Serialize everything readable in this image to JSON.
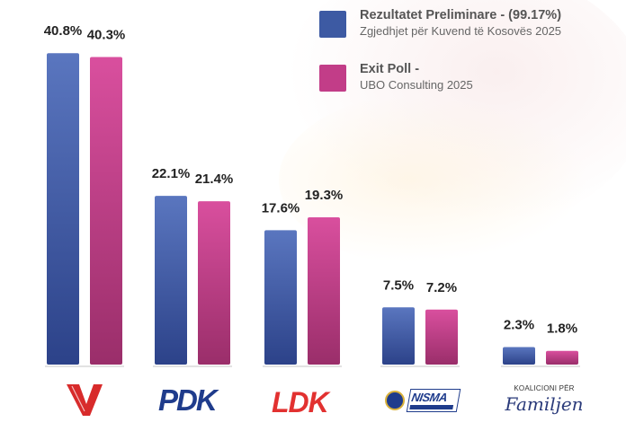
{
  "chart_data": {
    "type": "bar",
    "categories": [
      "V",
      "PDK",
      "LDK",
      "NISMA",
      "Koalicioni për Familjen"
    ],
    "series": [
      {
        "name": "Rezultatet Preliminare - (99.17%)",
        "sub": "Zgjedhjet për Kuvend të Kosovës 2025",
        "color": "#3d5aa3",
        "values": [
          40.8,
          22.1,
          17.6,
          7.5,
          2.3
        ],
        "labels": [
          "40.8%",
          "22.1%",
          "17.6%",
          "7.5%",
          "2.3%"
        ]
      },
      {
        "name": "Exit Poll -",
        "sub": "UBO Consulting 2025",
        "color": "#c23d88",
        "values": [
          40.3,
          21.4,
          19.3,
          7.2,
          1.8
        ],
        "labels": [
          "40.3%",
          "21.4%",
          "19.3%",
          "7.2%",
          "1.8%"
        ]
      }
    ],
    "ylim": [
      0,
      42
    ],
    "grid": false,
    "legend_position": "top-right"
  },
  "logos": {
    "pdk": "PDK",
    "ldk": "LDK",
    "nisma": "NISMA",
    "familjen_top": "KOALICIONI PËR",
    "familjen_main": "Familjen"
  }
}
